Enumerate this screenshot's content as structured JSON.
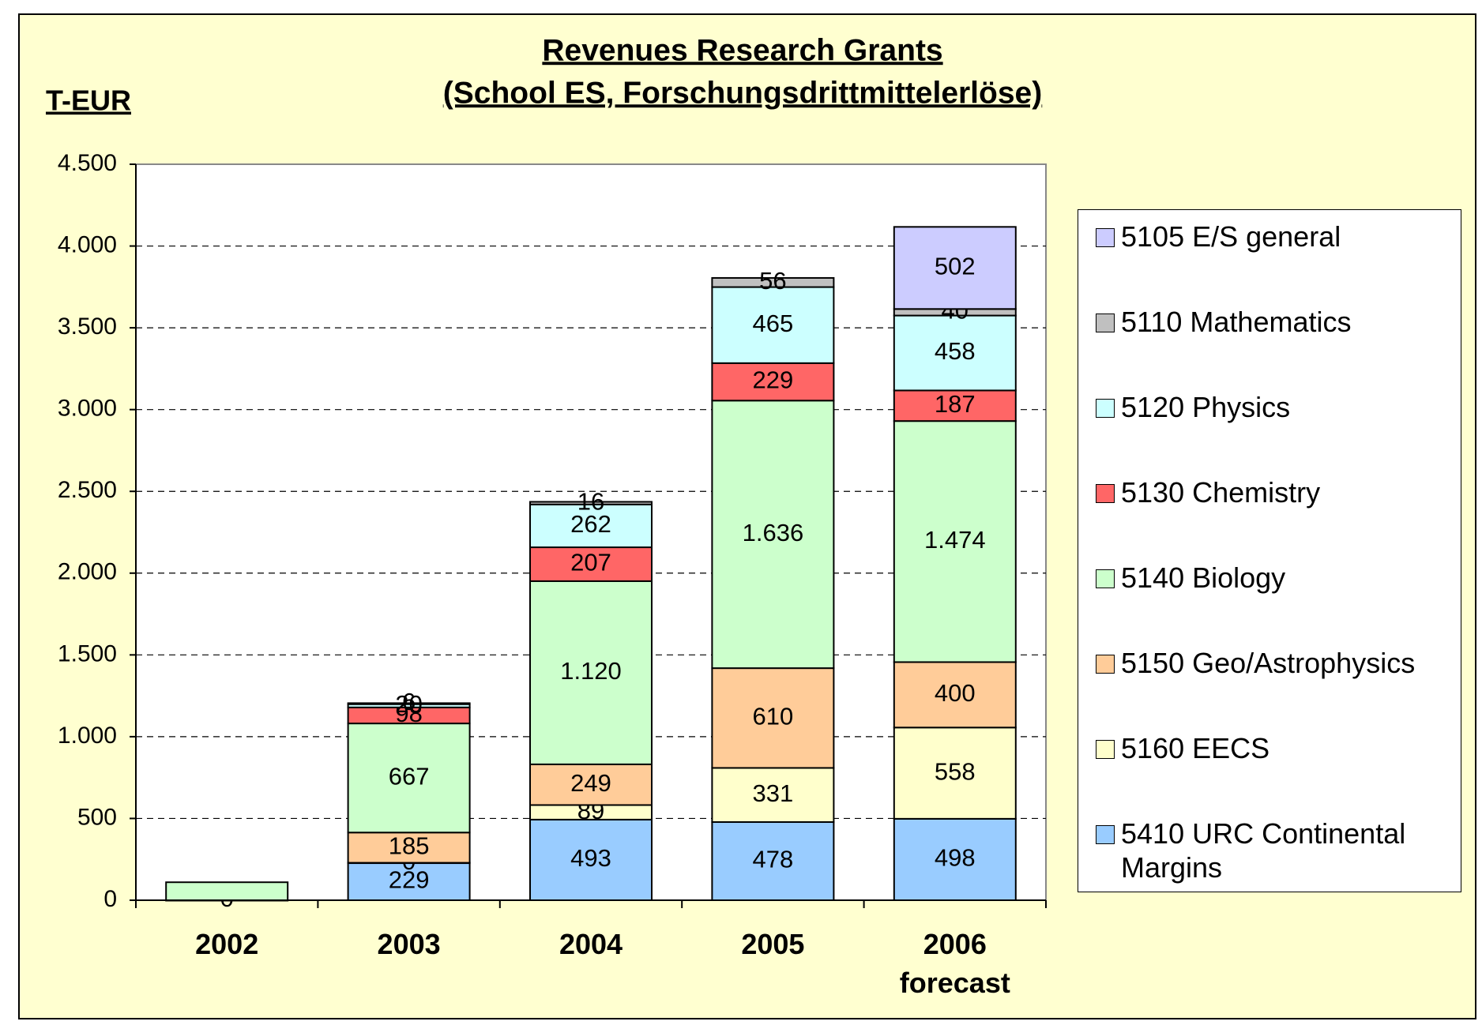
{
  "chart_data": {
    "type": "stacked_bar",
    "title": "Revenues Research Grants",
    "subtitle": "(School ES, Forschungsdrittmittelerlöse)",
    "y_label": "T-EUR",
    "categories": [
      "2002",
      "2003",
      "2004",
      "2005",
      "2006\nforecast"
    ],
    "series": [
      {
        "name": "5410 URC Continental Margins",
        "color": "#99ccff",
        "values": [
          0,
          229,
          493,
          478,
          498
        ],
        "value_labels": [
          "0",
          "229",
          "493",
          "478",
          "498"
        ]
      },
      {
        "name": "5160 EECS",
        "color": "#ffffcc",
        "values": [
          null,
          0,
          89,
          331,
          558
        ],
        "value_labels": [
          null,
          "0",
          "89",
          "331",
          "558"
        ]
      },
      {
        "name": "5150 Geo/Astrophysics",
        "color": "#ffcc99",
        "values": [
          null,
          185,
          249,
          610,
          400
        ],
        "value_labels": [
          null,
          "185",
          "249",
          "610",
          "400"
        ]
      },
      {
        "name": "5140 Biology",
        "color": "#ccffcc",
        "values": [
          110,
          667,
          1120,
          1636,
          1474
        ],
        "value_labels": [
          null,
          "667",
          "1.120",
          "1.636",
          "1.474"
        ]
      },
      {
        "name": "5130 Chemistry",
        "color": "#ff6666",
        "values": [
          null,
          98,
          207,
          229,
          187
        ],
        "value_labels": [
          null,
          "98",
          "207",
          "229",
          "187"
        ]
      },
      {
        "name": "5120 Physics",
        "color": "#ccffff",
        "values": [
          null,
          20,
          262,
          465,
          458
        ],
        "value_labels": [
          null,
          "20",
          "262",
          "465",
          "458"
        ]
      },
      {
        "name": "5110 Mathematics",
        "color": "#c0c0c0",
        "values": [
          null,
          6,
          16,
          56,
          40
        ],
        "value_labels": [
          null,
          "6",
          "16",
          "56",
          "40"
        ]
      },
      {
        "name": "5105 E/S general",
        "color": "#ccccff",
        "values": [
          null,
          null,
          null,
          null,
          502
        ],
        "value_labels": [
          null,
          null,
          null,
          null,
          "502"
        ]
      }
    ],
    "ylim": [
      0,
      4500
    ],
    "yticks": [
      0,
      500,
      {
        "value": 1000,
        "label": "1.000"
      },
      {
        "value": 1500,
        "label": "1.500"
      },
      {
        "value": 2000,
        "label": "2.000"
      },
      {
        "value": 2500,
        "label": "2.500"
      },
      {
        "value": 3000,
        "label": "3.000"
      },
      {
        "value": 3500,
        "label": "3.500"
      },
      {
        "value": 4000,
        "label": "4.000"
      },
      {
        "value": 4500,
        "label": "4.500"
      }
    ],
    "grid": true,
    "legend": "right"
  }
}
